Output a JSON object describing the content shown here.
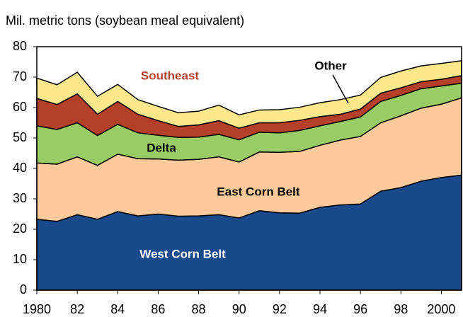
{
  "chart_data": {
    "type": "stacked_area",
    "ylabel": "Mil. metric tons (soybean meal equivalent)",
    "x": [
      1980,
      1981,
      1982,
      1983,
      1984,
      1985,
      1986,
      1987,
      1988,
      1989,
      1990,
      1991,
      1992,
      1993,
      1994,
      1995,
      1996,
      1997,
      1998,
      1999,
      2000,
      2001
    ],
    "xlim": [
      1980,
      2001
    ],
    "xticks": [
      1980,
      {
        "value": 1982,
        "label": "82"
      },
      {
        "value": 1984,
        "label": "84"
      },
      {
        "value": 1986,
        "label": "86"
      },
      {
        "value": 1988,
        "label": "88"
      },
      {
        "value": 1990,
        "label": "90"
      },
      {
        "value": 1992,
        "label": "92"
      },
      {
        "value": 1994,
        "label": "94"
      },
      {
        "value": 1996,
        "label": "96"
      },
      {
        "value": 1998,
        "label": "98"
      },
      2000
    ],
    "ylim": [
      0,
      80
    ],
    "yticks": [
      0,
      10,
      20,
      30,
      40,
      50,
      60,
      70,
      80
    ],
    "series": [
      {
        "name": "West Corn Belt",
        "color": "#1b4a8c",
        "values": [
          23.3,
          22.6,
          24.8,
          23.3,
          25.8,
          24.4,
          25,
          24.3,
          24.4,
          24.8,
          23.7,
          26.1,
          25.4,
          25.3,
          27.2,
          28,
          28.3,
          32.5,
          33.7,
          35.8,
          37,
          37.8
        ]
      },
      {
        "name": "East Corn Belt",
        "color": "#fcca9a",
        "values": [
          18.5,
          18.8,
          19,
          17.7,
          18.9,
          18.8,
          18.1,
          18.4,
          18.6,
          19,
          18.4,
          19.3,
          19.9,
          20.3,
          20.4,
          21.3,
          22.2,
          22.5,
          23.6,
          24,
          24.1,
          25.4
        ]
      },
      {
        "name": "Delta",
        "color": "#99cc66",
        "values": [
          12.2,
          11.4,
          11.2,
          9.8,
          9.8,
          8.5,
          7.8,
          7.5,
          7.3,
          7.4,
          7.3,
          6.5,
          6.4,
          6.9,
          6.4,
          6.1,
          6.4,
          7,
          6.7,
          6.4,
          6,
          4.8
        ]
      },
      {
        "name": "Southeast",
        "color": "#b5402a",
        "values": [
          9,
          8.2,
          9.5,
          7,
          7.5,
          6.1,
          4.8,
          3.6,
          4,
          4.5,
          3.8,
          3.1,
          3.3,
          3.3,
          3,
          2.4,
          2.6,
          2.7,
          2.5,
          2.3,
          2.2,
          2.5
        ]
      },
      {
        "name": "Other",
        "color": "#fbe88c",
        "values": [
          6.7,
          6.5,
          7.1,
          5.9,
          5.6,
          4.8,
          4.7,
          4.5,
          4.5,
          5.1,
          4.4,
          4.2,
          4.3,
          4.3,
          4.6,
          4.8,
          4.6,
          5.2,
          5.5,
          5.2,
          5.2,
          4.9
        ]
      }
    ]
  }
}
